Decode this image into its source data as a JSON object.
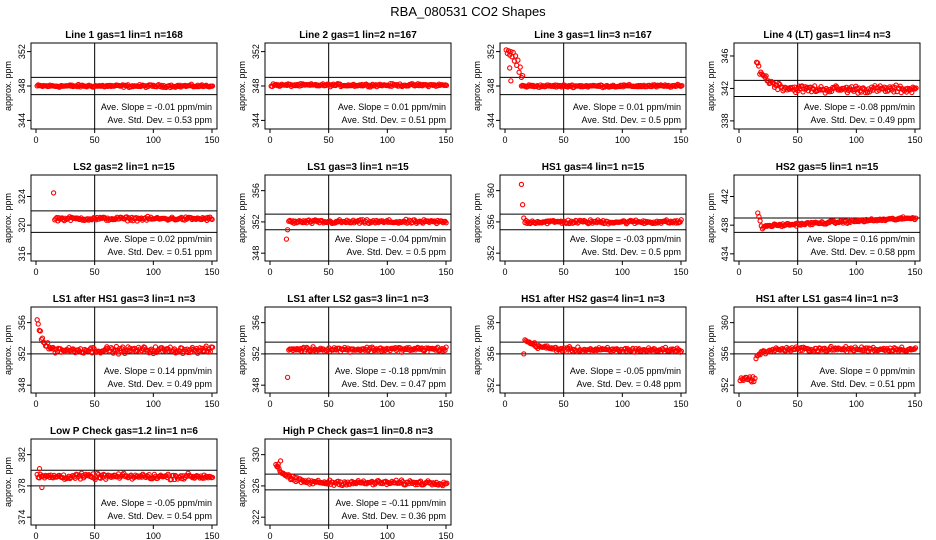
{
  "title": "RBA_080531  CO2 Shapes",
  "colors": {
    "points": "#ff0000",
    "lines": "#000000",
    "background": "#ffffff"
  },
  "chart_data": [
    {
      "type": "scatter",
      "title": "Line 1 gas=1 lin=1 n=168",
      "ylabel": "approx. ppm",
      "xlim": [
        0,
        150
      ],
      "ylim": [
        343,
        353
      ],
      "xticks": [
        0,
        50,
        100,
        150
      ],
      "yticks": [
        344,
        348,
        352
      ],
      "hlines": [
        349,
        347
      ],
      "vline": 50,
      "slope_label": "Ave. Slope =  -0.01  ppm/min",
      "sd_label": "Ave. Std. Dev. =  0.53  ppm",
      "shape": {
        "kind": "flat",
        "level": 348,
        "x0": 1,
        "x1": 151,
        "step": 0.9,
        "noise": 0.15
      }
    },
    {
      "type": "scatter",
      "title": "Line 2 gas=1 lin=2 n=167",
      "ylabel": "approx. ppm",
      "xlim": [
        0,
        150
      ],
      "ylim": [
        343,
        353
      ],
      "xticks": [
        0,
        50,
        100,
        150
      ],
      "yticks": [
        344,
        348,
        352
      ],
      "hlines": [
        349,
        347
      ],
      "vline": 50,
      "slope_label": "Ave. Slope =  0.01  ppm/min",
      "sd_label": "Ave. Std. Dev. =  0.51  ppm",
      "shape": {
        "kind": "flat",
        "level": 348.1,
        "x0": 1,
        "x1": 151,
        "step": 0.9,
        "noise": 0.15
      }
    },
    {
      "type": "scatter",
      "title": "Line 3 gas=1 lin=3 n=167",
      "ylabel": "approx. ppm",
      "xlim": [
        0,
        150
      ],
      "ylim": [
        343,
        353
      ],
      "xticks": [
        0,
        50,
        100,
        150
      ],
      "yticks": [
        344,
        348,
        352
      ],
      "hlines": [
        349,
        347
      ],
      "vline": 50,
      "slope_label": "Ave. Slope =  0.01  ppm/min",
      "sd_label": "Ave. Std. Dev. =  0.5  ppm",
      "shape": {
        "kind": "flat",
        "level": 348,
        "x0": 14,
        "x1": 151,
        "step": 0.9,
        "noise": 0.15
      },
      "extra": [
        [
          1,
          352.2
        ],
        [
          2,
          351.8
        ],
        [
          3,
          352.1
        ],
        [
          4,
          351.6
        ],
        [
          5,
          352
        ],
        [
          6,
          351.4
        ],
        [
          7,
          351.9
        ],
        [
          8,
          350.9
        ],
        [
          9,
          351.5
        ],
        [
          10,
          350.4
        ],
        [
          11,
          351
        ],
        [
          12,
          349.6
        ],
        [
          13,
          350.2
        ],
        [
          14,
          349
        ],
        [
          4,
          350.1
        ],
        [
          5,
          348.6
        ],
        [
          15,
          349.2
        ]
      ]
    },
    {
      "type": "scatter",
      "title": "Line 4 (LT) gas=1 lin=4 n=3",
      "ylabel": "approx. ppm",
      "xlim": [
        0,
        150
      ],
      "ylim": [
        337,
        347.6
      ],
      "xticks": [
        0,
        50,
        100,
        150
      ],
      "yticks": [
        338,
        342,
        346
      ],
      "hlines": [
        343,
        341
      ],
      "vline": 50,
      "slope_label": "Ave. Slope =  -0.08  ppm/min",
      "sd_label": "Ave. Std. Dev. =  0.49  ppm",
      "shape": {
        "kind": "decay",
        "level": 341.9,
        "amp": 3.3,
        "tau": 9,
        "x0": 15,
        "x1": 151,
        "step": 0.9,
        "noise": 0.45
      }
    },
    {
      "type": "scatter",
      "title": "LS2 gas=2 lin=1 n=15",
      "ylabel": "approx. ppm",
      "xlim": [
        0,
        150
      ],
      "ylim": [
        315,
        327
      ],
      "xticks": [
        0,
        50,
        100,
        150
      ],
      "yticks": [
        316,
        320,
        324
      ],
      "hlines": [
        322,
        319
      ],
      "vline": 50,
      "slope_label": "Ave. Slope =  0.02  ppm/min",
      "sd_label": "Ave. Std. Dev. =  0.51  ppm",
      "shape": {
        "kind": "flat",
        "level": 320.9,
        "x0": 16,
        "x1": 151,
        "step": 0.9,
        "noise": 0.25
      },
      "extra": [
        [
          15,
          324.5
        ]
      ]
    },
    {
      "type": "scatter",
      "title": "LS1 gas=3 lin=1 n=15",
      "ylabel": "approx. ppm",
      "xlim": [
        0,
        150
      ],
      "ylim": [
        347,
        358
      ],
      "xticks": [
        0,
        50,
        100,
        150
      ],
      "yticks": [
        348,
        352,
        356
      ],
      "hlines": [
        353,
        351
      ],
      "vline": 50,
      "slope_label": "Ave. Slope =  -0.04  ppm/min",
      "sd_label": "Ave. Std. Dev. =  0.5  ppm",
      "shape": {
        "kind": "flat",
        "level": 352,
        "x0": 16,
        "x1": 151,
        "step": 0.9,
        "noise": 0.25
      },
      "extra": [
        [
          15,
          351
        ],
        [
          14,
          349.8
        ]
      ]
    },
    {
      "type": "scatter",
      "title": "HS1 gas=4 lin=1 n=15",
      "ylabel": "approx. ppm",
      "xlim": [
        0,
        150
      ],
      "ylim": [
        351,
        362
      ],
      "xticks": [
        0,
        50,
        100,
        150
      ],
      "yticks": [
        352,
        356,
        360
      ],
      "hlines": [
        357,
        355
      ],
      "vline": 50,
      "slope_label": "Ave. Slope =  -0.03  ppm/min",
      "sd_label": "Ave. Std. Dev. =  0.5  ppm",
      "shape": {
        "kind": "flat",
        "level": 356,
        "x0": 17,
        "x1": 151,
        "step": 0.9,
        "noise": 0.25
      },
      "extra": [
        [
          14,
          360.8
        ],
        [
          15,
          358.2
        ],
        [
          16,
          356.5
        ]
      ]
    },
    {
      "type": "scatter",
      "title": "HS2 gas=5 lin=1 n=15",
      "ylabel": "approx. ppm",
      "xlim": [
        0,
        150
      ],
      "ylim": [
        433,
        445
      ],
      "xticks": [
        0,
        50,
        100,
        150
      ],
      "yticks": [
        434,
        438,
        442
      ],
      "hlines": [
        439,
        437
      ],
      "vline": 50,
      "slope_label": "Ave. Slope =  0.16  ppm/min",
      "sd_label": "Ave. Std. Dev. =  0.58  ppm",
      "shape": {
        "kind": "ramp",
        "y0": 437.9,
        "y1": 439,
        "x0": 22,
        "x1": 151,
        "step": 0.9,
        "noise": 0.2
      },
      "extra": [
        [
          16,
          439.7
        ],
        [
          17,
          439.2
        ],
        [
          18,
          438.6
        ],
        [
          19,
          437.9
        ],
        [
          20,
          437.5
        ],
        [
          21,
          437.7
        ]
      ]
    },
    {
      "type": "scatter",
      "title": "LS1 after HS1 gas=3 lin=1 n=3",
      "ylabel": "approx. ppm",
      "xlim": [
        0,
        150
      ],
      "ylim": [
        347,
        358
      ],
      "xticks": [
        0,
        50,
        100,
        150
      ],
      "yticks": [
        348,
        352,
        356
      ],
      "hlines": [
        353.5,
        352
      ],
      "vline": 50,
      "slope_label": "Ave. Slope =  0.14  ppm/min",
      "sd_label": "Ave. Std. Dev. =  0.49  ppm",
      "shape": {
        "kind": "decay",
        "level": 352.5,
        "amp": 4.2,
        "tau": 4,
        "x0": 1,
        "x1": 151,
        "step": 0.9,
        "noise": 0.4
      }
    },
    {
      "type": "scatter",
      "title": "LS1 after LS2 gas=3 lin=1 n=3",
      "ylabel": "approx. ppm",
      "xlim": [
        0,
        150
      ],
      "ylim": [
        347,
        358
      ],
      "xticks": [
        0,
        50,
        100,
        150
      ],
      "yticks": [
        348,
        352,
        356
      ],
      "hlines": [
        353.5,
        352
      ],
      "vline": 50,
      "slope_label": "Ave. Slope =  -0.18  ppm/min",
      "sd_label": "Ave. Std. Dev. =  0.47  ppm",
      "shape": {
        "kind": "flat",
        "level": 352.6,
        "x0": 16,
        "x1": 151,
        "step": 0.9,
        "noise": 0.3
      },
      "extra": [
        [
          15,
          349
        ]
      ]
    },
    {
      "type": "scatter",
      "title": "HS1 after HS2 gas=4 lin=1 n=3",
      "ylabel": "approx. ppm",
      "xlim": [
        0,
        150
      ],
      "ylim": [
        351,
        362
      ],
      "xticks": [
        0,
        50,
        100,
        150
      ],
      "yticks": [
        352,
        356,
        360
      ],
      "hlines": [
        357.5,
        356
      ],
      "vline": 50,
      "slope_label": "Ave. Slope =  -0.05  ppm/min",
      "sd_label": "Ave. Std. Dev. =  0.48  ppm",
      "shape": {
        "kind": "decay",
        "level": 356.5,
        "amp": 1.2,
        "tau": 12,
        "x0": 18,
        "x1": 151,
        "step": 0.9,
        "noise": 0.3
      },
      "extra": [
        [
          16,
          356
        ],
        [
          17,
          357.8
        ]
      ]
    },
    {
      "type": "scatter",
      "title": "HS1 after LS1 gas=4 lin=1 n=3",
      "ylabel": "approx. ppm",
      "xlim": [
        0,
        150
      ],
      "ylim": [
        351,
        362
      ],
      "xticks": [
        0,
        50,
        100,
        150
      ],
      "yticks": [
        352,
        356,
        360
      ],
      "hlines": [
        357.5,
        356
      ],
      "vline": 50,
      "slope_label": "Ave. Slope =  0  ppm/min",
      "sd_label": "Ave. Std. Dev. =  0.51  ppm",
      "shape": {
        "kind": "rise",
        "level": 356.6,
        "low": 352.8,
        "xstep": 14,
        "x0": 1,
        "x1": 151,
        "step": 0.9,
        "noise": 0.3
      }
    },
    {
      "type": "scatter",
      "title": "Low P Check gas=1.2 lin=1 n=6",
      "ylabel": "approx. ppm",
      "xlim": [
        0,
        150
      ],
      "ylim": [
        373,
        384
      ],
      "xticks": [
        0,
        50,
        100,
        150
      ],
      "yticks": [
        374,
        378,
        382
      ],
      "hlines": [
        380,
        378
      ],
      "vline": 50,
      "slope_label": "Ave. Slope =  -0.05  ppm/min",
      "sd_label": "Ave. Std. Dev. =  0.54  ppm",
      "shape": {
        "kind": "flat",
        "level": 379.2,
        "x0": 1,
        "x1": 151,
        "step": 0.9,
        "noise": 0.35
      },
      "extra": [
        [
          5,
          377.8
        ],
        [
          3,
          380.2
        ]
      ]
    },
    {
      "type": "scatter",
      "title": "High P Check gas=1 lin=0.8 n=3",
      "ylabel": "approx. ppm",
      "xlim": [
        0,
        150
      ],
      "ylim": [
        321,
        332
      ],
      "xticks": [
        0,
        50,
        100,
        150
      ],
      "yticks": [
        322,
        326,
        330
      ],
      "hlines": [
        327.5,
        325.5
      ],
      "vline": 50,
      "slope_label": "Ave. Slope =  -0.11  ppm/min",
      "sd_label": "Ave. Std. Dev. =  0.36  ppm",
      "shape": {
        "kind": "decay",
        "level": 326.4,
        "amp": 2.4,
        "tau": 9,
        "x0": 5,
        "x1": 151,
        "step": 0.9,
        "noise": 0.3
      },
      "extra": [
        [
          7,
          328.8
        ],
        [
          9,
          329.2
        ]
      ]
    }
  ]
}
